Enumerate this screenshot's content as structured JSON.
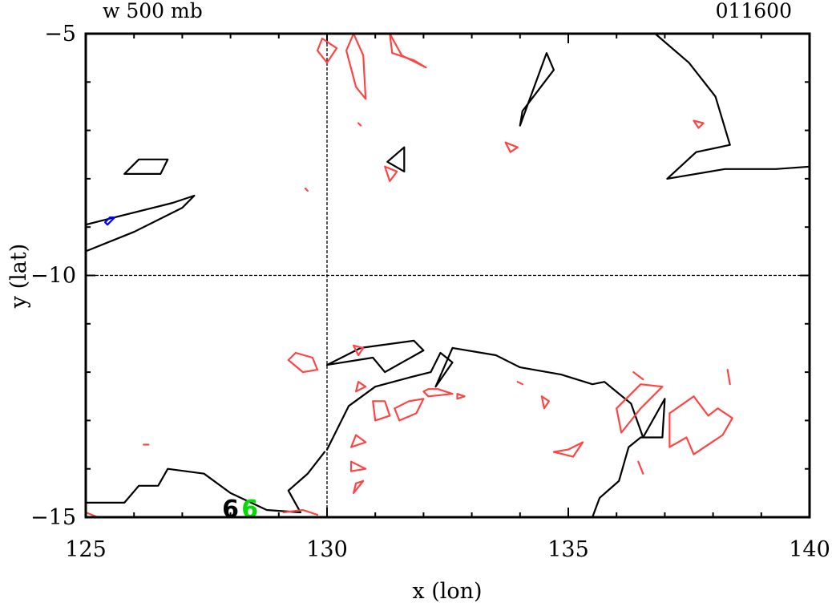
{
  "chart_data": {
    "type": "contour",
    "title_left": "w 500 mb",
    "title_right": "011600",
    "xlabel": "x (lon)",
    "ylabel": "y (lat)",
    "xlim": [
      125,
      140
    ],
    "ylim": [
      -15,
      -5
    ],
    "xticks": [
      125,
      130,
      135,
      140
    ],
    "xtick_labels": [
      "125",
      "130",
      "135",
      "140"
    ],
    "yticks": [
      -5,
      -10,
      -15
    ],
    "ytick_labels": [
      "−5",
      "−10",
      "−15"
    ],
    "reference_lines": {
      "x": 130,
      "y": -10
    },
    "markers": [
      {
        "text": "6",
        "x": 128.0,
        "y": -14.8,
        "color": "#000000"
      },
      {
        "text": "6",
        "x": 128.4,
        "y": -14.8,
        "color": "#00dd00"
      }
    ],
    "series": [
      {
        "color": "#000000",
        "lines": [
          [
            [
              125,
              -9.5
            ],
            [
              126,
              -9.1
            ],
            [
              127,
              -8.6
            ],
            [
              127.25,
              -8.35
            ],
            [
              126.8,
              -8.5
            ],
            [
              125.6,
              -8.8
            ],
            [
              125,
              -8.95
            ]
          ],
          [
            [
              125.8,
              -7.9
            ],
            [
              126.55,
              -7.9
            ],
            [
              126.7,
              -7.6
            ],
            [
              126.1,
              -7.6
            ],
            [
              125.8,
              -7.9
            ]
          ],
          [
            [
              131.25,
              -7.65
            ],
            [
              131.6,
              -7.35
            ],
            [
              131.6,
              -7.85
            ],
            [
              131.25,
              -7.65
            ]
          ],
          [
            [
              134,
              -6.9
            ],
            [
              134.55,
              -5.4
            ],
            [
              134.7,
              -5.75
            ],
            [
              134.05,
              -6.6
            ],
            [
              134,
              -6.9
            ]
          ],
          [
            [
              136.1,
              -5
            ],
            [
              136.8,
              -5
            ],
            [
              137.5,
              -5.6
            ],
            [
              138.05,
              -6.3
            ],
            [
              138.35,
              -7.3
            ],
            [
              137.65,
              -7.45
            ],
            [
              137.05,
              -8.0
            ],
            [
              138.25,
              -7.8
            ],
            [
              139.3,
              -7.8
            ],
            [
              140,
              -7.75
            ]
          ],
          [
            [
              130.7,
              -11.5
            ],
            [
              131.8,
              -11.35
            ],
            [
              132.0,
              -11.55
            ],
            [
              131.2,
              -12.0
            ],
            [
              130.95,
              -11.7
            ],
            [
              130.0,
              -11.85
            ],
            [
              130.7,
              -11.5
            ]
          ],
          [
            [
              130,
              -13.6
            ],
            [
              130.45,
              -12.7
            ],
            [
              131,
              -12.3
            ],
            [
              131.75,
              -12.1
            ],
            [
              132.15,
              -12.0
            ],
            [
              132.35,
              -11.6
            ],
            [
              132.6,
              -11.8
            ],
            [
              132.25,
              -12.3
            ],
            [
              132.6,
              -11.5
            ],
            [
              133.5,
              -11.65
            ],
            [
              134.0,
              -11.9
            ],
            [
              134.85,
              -12.05
            ],
            [
              135.5,
              -12.25
            ],
            [
              135.75,
              -12.2
            ],
            [
              136.3,
              -12.65
            ],
            [
              136.55,
              -13.35
            ],
            [
              137,
              -12.55
            ],
            [
              136.95,
              -13.35
            ],
            [
              136.5,
              -13.35
            ],
            [
              136.25,
              -13.55
            ],
            [
              136.05,
              -14.25
            ],
            [
              135.65,
              -14.6
            ],
            [
              135.5,
              -15
            ]
          ],
          [
            [
              125,
              -14.7
            ],
            [
              125.8,
              -14.7
            ],
            [
              126.1,
              -14.35
            ],
            [
              126.5,
              -14.35
            ],
            [
              126.7,
              -14.0
            ],
            [
              127.45,
              -14.1
            ],
            [
              128.0,
              -14.5
            ],
            [
              128.75,
              -14.85
            ],
            [
              129.45,
              -14.9
            ],
            [
              129.2,
              -14.45
            ],
            [
              129.6,
              -14.1
            ],
            [
              129.95,
              -13.65
            ]
          ]
        ]
      },
      {
        "color": "#0000ff",
        "lines": [
          [
            [
              125.4,
              -8.9
            ],
            [
              125.5,
              -8.8
            ],
            [
              125.6,
              -8.8
            ],
            [
              125.45,
              -8.95
            ],
            [
              125.4,
              -8.9
            ]
          ]
        ]
      },
      {
        "color": "#ff4444",
        "lines": [
          [
            [
              129.8,
              -5.35
            ],
            [
              129.9,
              -5.1
            ],
            [
              130.2,
              -5.3
            ],
            [
              130.0,
              -5.6
            ],
            [
              129.8,
              -5.35
            ]
          ],
          [
            [
              130.55,
              -5.0
            ],
            [
              130.75,
              -5.45
            ],
            [
              130.8,
              -6.35
            ],
            [
              130.6,
              -6.1
            ],
            [
              130.4,
              -5.35
            ],
            [
              130.55,
              -5.0
            ]
          ],
          [
            [
              131.3,
              -5.0
            ],
            [
              131.55,
              -5.45
            ],
            [
              132.05,
              -5.7
            ],
            [
              131.8,
              -5.55
            ],
            [
              131.35,
              -5.4
            ],
            [
              131.3,
              -5.0
            ]
          ],
          [
            [
              133.7,
              -7.25
            ],
            [
              133.95,
              -7.35
            ],
            [
              133.8,
              -7.45
            ],
            [
              133.7,
              -7.25
            ]
          ],
          [
            [
              131.2,
              -7.75
            ],
            [
              131.45,
              -7.85
            ],
            [
              131.3,
              -8.05
            ],
            [
              131.2,
              -7.75
            ]
          ],
          [
            [
              137.6,
              -6.8
            ],
            [
              137.8,
              -6.85
            ],
            [
              137.7,
              -6.95
            ],
            [
              137.6,
              -6.8
            ]
          ],
          [
            [
              130.65,
              -6.85
            ],
            [
              130.7,
              -6.9
            ]
          ],
          [
            [
              129.55,
              -8.2
            ],
            [
              129.6,
              -8.25
            ]
          ],
          [
            [
              129.35,
              -11.6
            ],
            [
              129.7,
              -11.7
            ],
            [
              129.8,
              -11.95
            ],
            [
              129.5,
              -12.0
            ],
            [
              129.2,
              -11.75
            ],
            [
              129.35,
              -11.6
            ]
          ],
          [
            [
              130.55,
              -11.45
            ],
            [
              130.75,
              -11.5
            ],
            [
              130.65,
              -11.65
            ],
            [
              130.55,
              -11.45
            ]
          ],
          [
            [
              130.65,
              -12.2
            ],
            [
              130.8,
              -12.3
            ],
            [
              130.6,
              -12.4
            ],
            [
              130.65,
              -12.2
            ]
          ],
          [
            [
              130.95,
              -12.6
            ],
            [
              131.2,
              -12.6
            ],
            [
              131.3,
              -12.9
            ],
            [
              131.0,
              -13.0
            ],
            [
              130.95,
              -12.6
            ]
          ],
          [
            [
              131.4,
              -12.75
            ],
            [
              131.7,
              -12.6
            ],
            [
              132.0,
              -12.55
            ],
            [
              131.85,
              -12.85
            ],
            [
              131.5,
              -13.0
            ],
            [
              131.4,
              -12.75
            ]
          ],
          [
            [
              132.0,
              -12.4
            ],
            [
              132.1,
              -12.35
            ],
            [
              132.3,
              -12.35
            ],
            [
              132.6,
              -12.45
            ],
            [
              132.1,
              -12.5
            ],
            [
              132.0,
              -12.4
            ]
          ],
          [
            [
              132.7,
              -12.45
            ],
            [
              132.85,
              -12.5
            ],
            [
              132.7,
              -12.55
            ],
            [
              132.7,
              -12.45
            ]
          ],
          [
            [
              130.6,
              -13.3
            ],
            [
              130.8,
              -13.45
            ],
            [
              130.5,
              -13.55
            ],
            [
              130.6,
              -13.3
            ]
          ],
          [
            [
              130.5,
              -13.85
            ],
            [
              130.8,
              -14.0
            ],
            [
              130.5,
              -14.05
            ],
            [
              130.5,
              -13.85
            ]
          ],
          [
            [
              130.6,
              -14.3
            ],
            [
              130.75,
              -14.25
            ],
            [
              130.55,
              -14.5
            ],
            [
              130.6,
              -14.3
            ]
          ],
          [
            [
              133.95,
              -12.2
            ],
            [
              134.05,
              -12.25
            ]
          ],
          [
            [
              134.45,
              -12.5
            ],
            [
              134.6,
              -12.6
            ],
            [
              134.5,
              -12.75
            ],
            [
              134.45,
              -12.5
            ]
          ],
          [
            [
              134.7,
              -13.65
            ],
            [
              135.0,
              -13.6
            ],
            [
              135.3,
              -13.45
            ],
            [
              135.1,
              -13.75
            ],
            [
              134.7,
              -13.65
            ]
          ],
          [
            [
              125,
              -14.9
            ],
            [
              125.25,
              -15.0
            ]
          ],
          [
            [
              126.2,
              -13.5
            ],
            [
              126.3,
              -13.5
            ]
          ],
          [
            [
              129.1,
              -14.9
            ],
            [
              129.5,
              -14.85
            ],
            [
              129.8,
              -14.95
            ]
          ],
          [
            [
              136.0,
              -12.75
            ],
            [
              136.5,
              -12.25
            ],
            [
              136.95,
              -12.3
            ],
            [
              136.5,
              -12.75
            ],
            [
              136.1,
              -13.25
            ],
            [
              136.0,
              -12.75
            ]
          ],
          [
            [
              136.35,
              -12.0
            ],
            [
              136.55,
              -12.15
            ]
          ],
          [
            [
              137.1,
              -12.85
            ],
            [
              137.6,
              -12.5
            ],
            [
              137.9,
              -12.9
            ],
            [
              138.1,
              -12.75
            ],
            [
              138.4,
              -12.95
            ],
            [
              138.2,
              -13.3
            ],
            [
              137.6,
              -13.7
            ],
            [
              137.45,
              -13.35
            ],
            [
              137.1,
              -13.55
            ],
            [
              137.1,
              -12.85
            ]
          ],
          [
            [
              136.45,
              -13.85
            ],
            [
              136.55,
              -14.1
            ]
          ],
          [
            [
              138.3,
              -11.95
            ],
            [
              138.35,
              -12.25
            ]
          ]
        ]
      }
    ]
  }
}
